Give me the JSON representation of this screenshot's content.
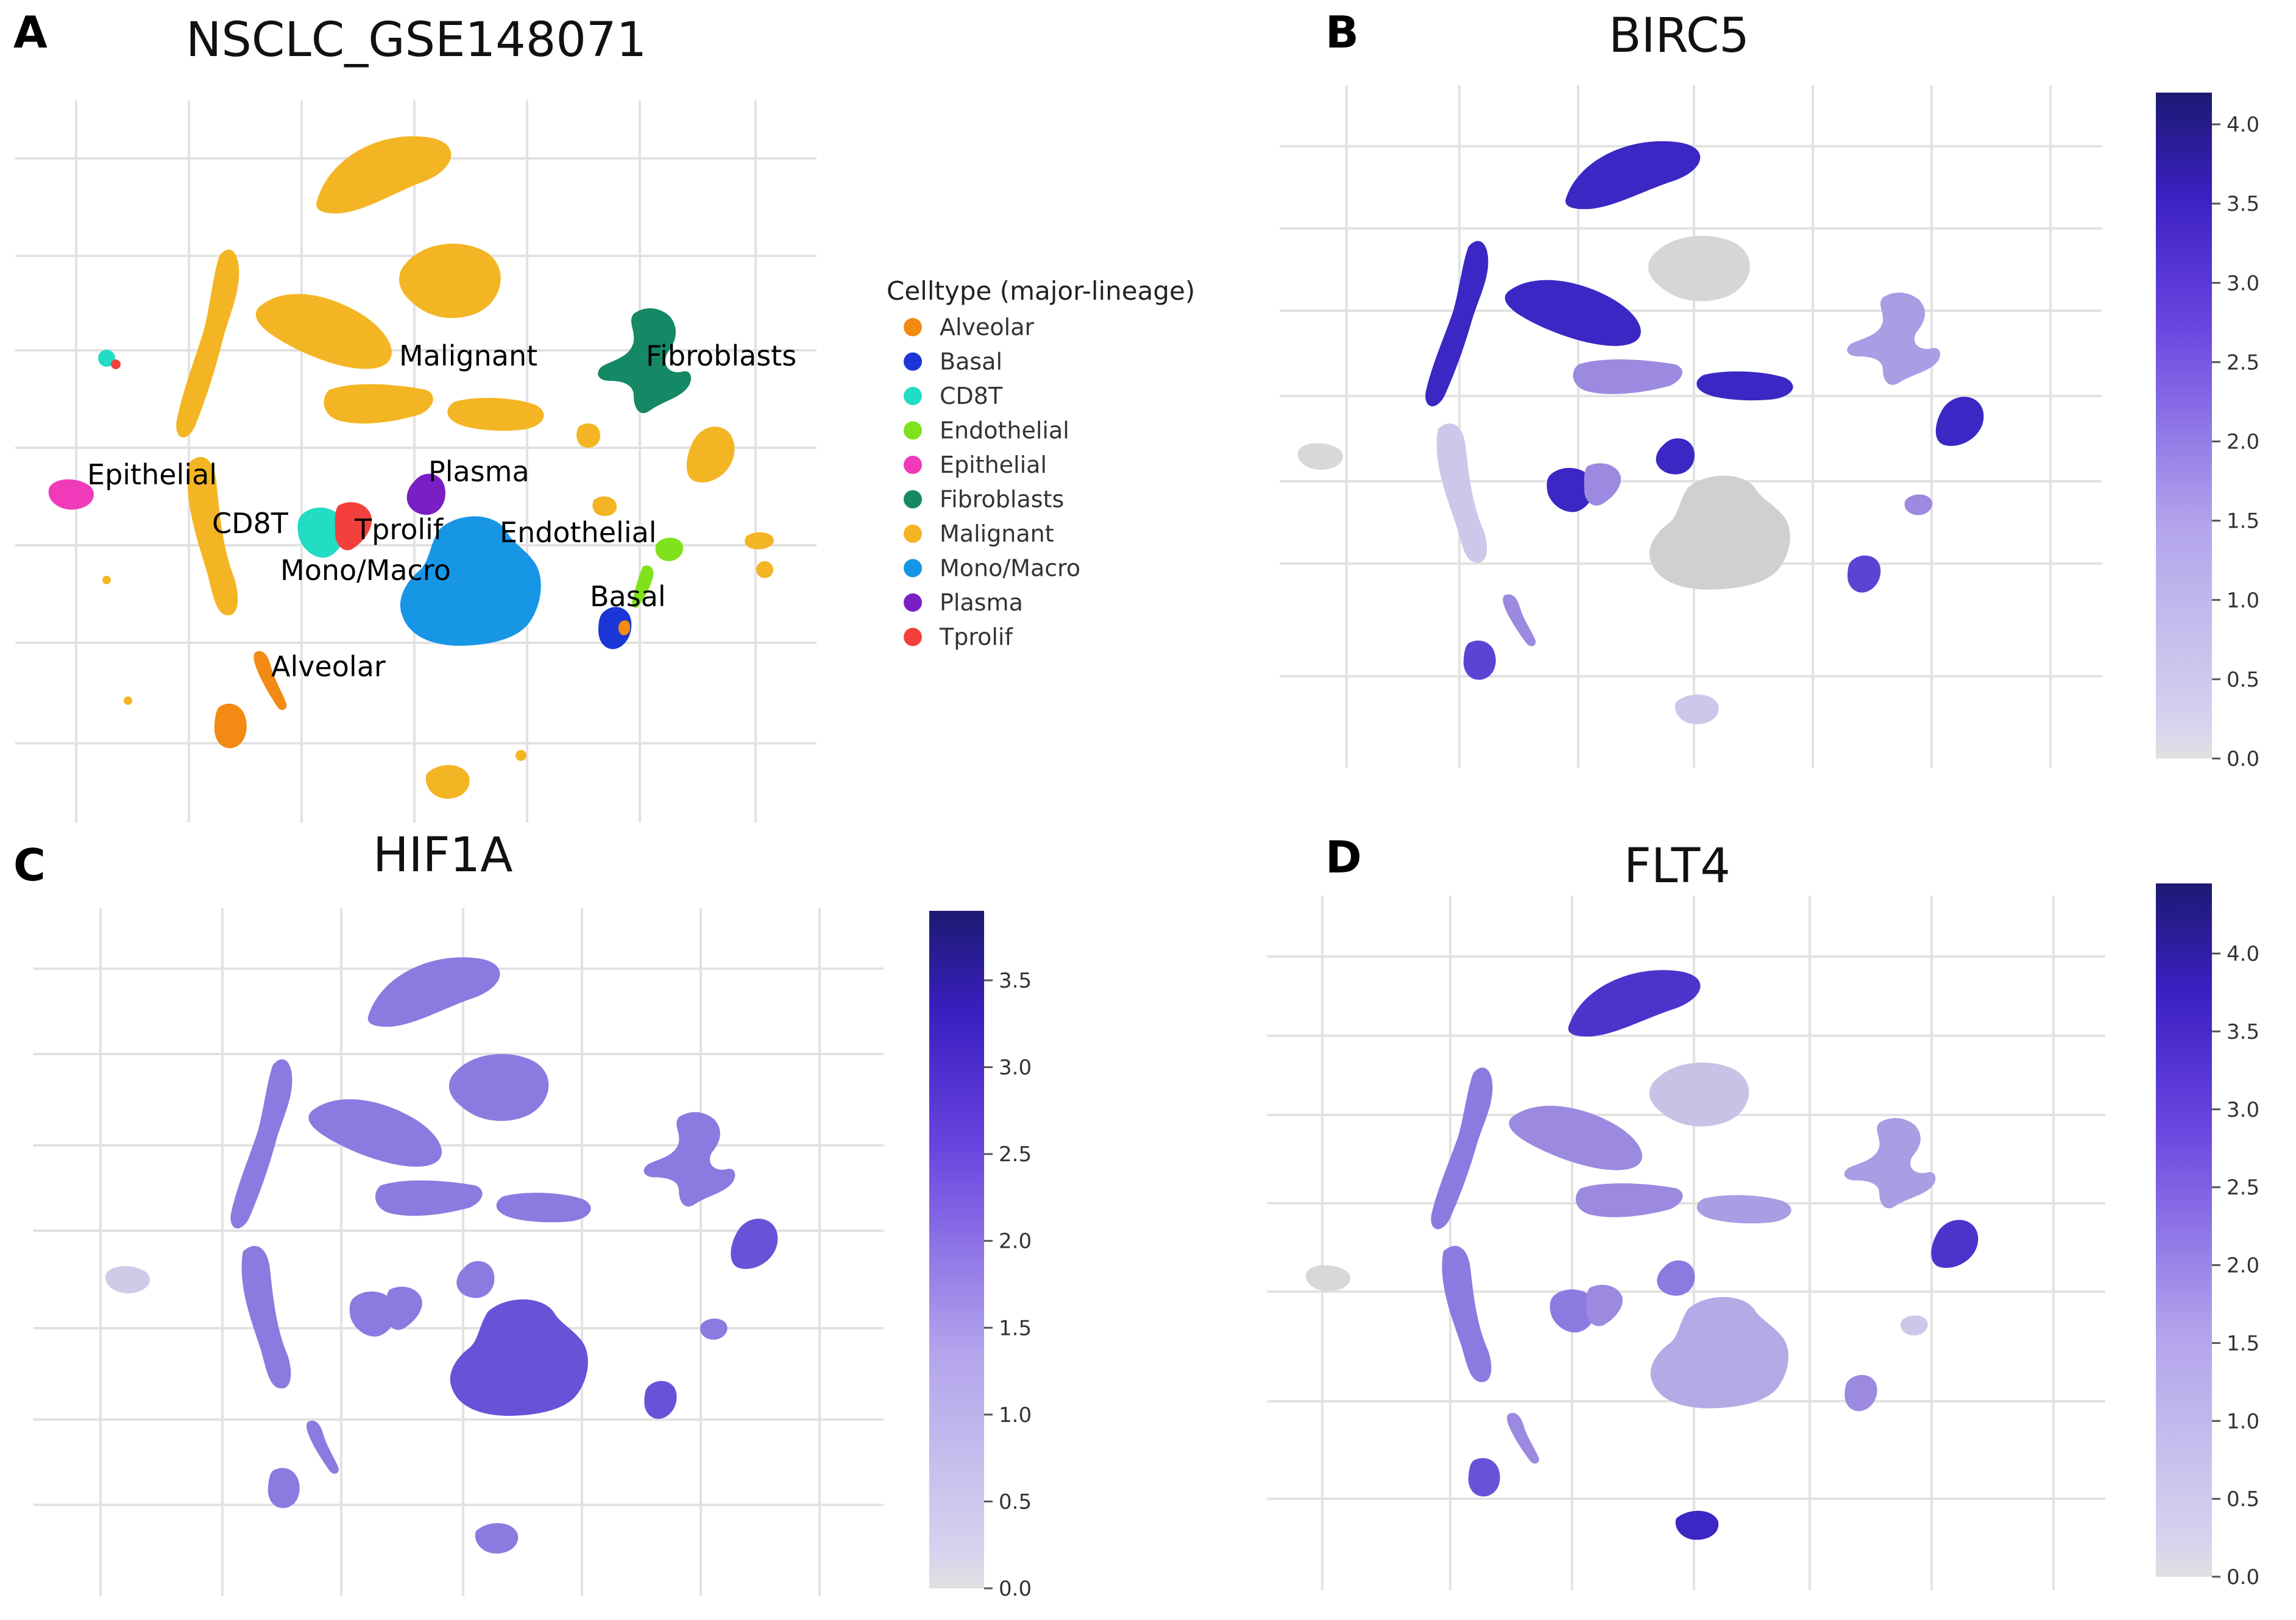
{
  "chart_data": [
    {
      "panel": "A",
      "type": "scatter",
      "title": "NSCLC_GSE148071",
      "legend_title": "Celltype (major-lineage)",
      "legend_position": "right",
      "grid": true,
      "legend": [
        {
          "name": "Alveolar",
          "color": "#f28a14"
        },
        {
          "name": "Basal",
          "color": "#1a36d6"
        },
        {
          "name": "CD8T",
          "color": "#22dcc3"
        },
        {
          "name": "Endothelial",
          "color": "#7fe21c"
        },
        {
          "name": "Epithelial",
          "color": "#f03ab9"
        },
        {
          "name": "Fibroblasts",
          "color": "#158866"
        },
        {
          "name": "Malignant",
          "color": "#f4b524"
        },
        {
          "name": "Mono/Macro",
          "color": "#1796e6"
        },
        {
          "name": "Plasma",
          "color": "#7a1fc4"
        },
        {
          "name": "Tprolif",
          "color": "#f4403c"
        }
      ],
      "cluster_labels": [
        "Malignant",
        "Fibroblasts",
        "Epithelial",
        "Plasma",
        "CD8T",
        "Tprolif",
        "Endothelial",
        "Mono/Macro",
        "Basal",
        "Alveolar"
      ]
    },
    {
      "panel": "B",
      "type": "scatter",
      "title": "BIRC5",
      "colorbar_ticks": [
        "4.0",
        "3.5",
        "3.0",
        "2.5",
        "2.0",
        "1.5",
        "1.0",
        "0.5",
        "0.0"
      ],
      "colorbar_range": [
        0.0,
        4.2
      ],
      "color_low": "#e0e0e0",
      "color_high": "#1a1a6e"
    },
    {
      "panel": "C",
      "type": "scatter",
      "title": "HIF1A",
      "colorbar_ticks": [
        "3.5",
        "3.0",
        "2.5",
        "2.0",
        "1.5",
        "1.0",
        "0.5",
        "0.0"
      ],
      "colorbar_range": [
        0.0,
        3.9
      ],
      "color_low": "#e0e0e0",
      "color_high": "#1a1a6e"
    },
    {
      "panel": "D",
      "type": "scatter",
      "title": "FLT4",
      "colorbar_ticks": [
        "4.0",
        "3.5",
        "3.0",
        "2.5",
        "2.0",
        "1.5",
        "1.0",
        "0.5",
        "0.0"
      ],
      "colorbar_range": [
        0.0,
        4.45
      ],
      "color_low": "#e0e0e0",
      "color_high": "#1a1a6e"
    }
  ]
}
